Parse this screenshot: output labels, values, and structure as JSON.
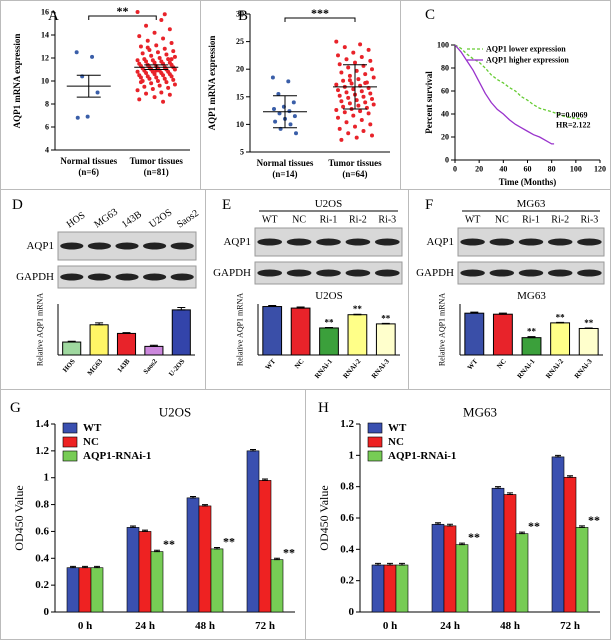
{
  "chart_data": [
    {
      "type": "dot",
      "panel": "A",
      "ylabel": "AQP1 mRNA expression",
      "ylim": [
        4,
        16
      ],
      "yticks": [
        4,
        6,
        8,
        10,
        12,
        14,
        16
      ],
      "significance": "**",
      "groups": [
        {
          "name": [
            "Normal tissues",
            "(n=6)"
          ],
          "color": "#3a5ea8",
          "mean": 9.55,
          "error": 0.95,
          "values": [
            12.5,
            12.1,
            10.4,
            9.0,
            6.9,
            6.8
          ]
        },
        {
          "name": [
            "Tumor tissues",
            "(n=81)"
          ],
          "color": "#e8232a",
          "mean": 11.2,
          "error": 0.2,
          "values": [
            16.0,
            15.3,
            14.8,
            14.5,
            14.2,
            13.9,
            13.7,
            13.5,
            13.3,
            13.1,
            13.0,
            12.8,
            12.7,
            12.6,
            12.5,
            12.4,
            12.3,
            12.2,
            12.1,
            12.0,
            11.9,
            11.9,
            11.8,
            11.8,
            11.7,
            11.7,
            11.6,
            11.6,
            11.5,
            11.5,
            11.4,
            11.4,
            11.3,
            11.3,
            11.2,
            11.2,
            11.2,
            11.1,
            11.1,
            11.0,
            11.0,
            11.0,
            10.9,
            10.9,
            10.8,
            10.8,
            10.8,
            10.7,
            10.7,
            10.6,
            10.6,
            10.5,
            10.5,
            10.4,
            10.4,
            10.3,
            10.3,
            10.2,
            10.2,
            10.1,
            10.0,
            10.0,
            9.9,
            9.8,
            9.7,
            9.6,
            9.5,
            9.4,
            9.3,
            9.2,
            9.0,
            8.9,
            8.8,
            8.6,
            8.4,
            8.2,
            12.9,
            11.9,
            10.9,
            9.9,
            15.8
          ]
        }
      ]
    },
    {
      "type": "dot",
      "panel": "B",
      "ylabel": "AQP1 mRNA expression",
      "ylim": [
        5,
        30
      ],
      "yticks": [
        5,
        10,
        15,
        20,
        25,
        30
      ],
      "significance": "***",
      "groups": [
        {
          "name": [
            "Normal tissues",
            "(n=14)"
          ],
          "color": "#3a5ea8",
          "mean": 12.3,
          "error": 2.9,
          "values": [
            18.5,
            17.8,
            15.5,
            14.0,
            13.2,
            12.8,
            12.4,
            12.0,
            11.5,
            11.0,
            10.5,
            10.0,
            9.2,
            8.4
          ]
        },
        {
          "name": [
            "Tumor tissues",
            "(n=64)"
          ],
          "color": "#e8232a",
          "mean": 16.8,
          "error": 4.0,
          "values": [
            25.0,
            24.5,
            24.0,
            23.5,
            23.0,
            22.5,
            22.2,
            21.8,
            21.5,
            21.2,
            20.9,
            20.6,
            20.3,
            20.0,
            19.7,
            19.4,
            19.1,
            18.8,
            18.5,
            18.2,
            17.9,
            17.6,
            17.4,
            17.2,
            17.0,
            16.8,
            16.6,
            16.4,
            16.2,
            16.0,
            15.8,
            15.6,
            15.4,
            15.2,
            15.0,
            14.8,
            14.6,
            14.4,
            14.2,
            14.0,
            13.8,
            13.6,
            13.4,
            13.2,
            13.0,
            12.8,
            12.6,
            12.4,
            12.2,
            12.0,
            11.6,
            11.2,
            10.8,
            10.4,
            10.0,
            9.6,
            9.2,
            8.8,
            8.4,
            8.0,
            7.6,
            7.2,
            17.5,
            18.0
          ]
        }
      ]
    },
    {
      "type": "survival",
      "panel": "C",
      "xlabel": "Time (Months)",
      "ylabel": "Percent survival",
      "xlim": [
        0,
        120
      ],
      "xticks": [
        0,
        20,
        40,
        60,
        80,
        100,
        120
      ],
      "ylim": [
        0,
        100
      ],
      "yticks": [
        0,
        20,
        40,
        60,
        80,
        100
      ],
      "annotations": [
        "P=0.0069",
        "HR=2.122"
      ],
      "series": [
        {
          "name": "AQP1 lower expression",
          "color": "#66cc33",
          "line_style": "dashed",
          "x": [
            0,
            5,
            10,
            15,
            20,
            25,
            30,
            35,
            40,
            45,
            50,
            55,
            60,
            65,
            70,
            80,
            90,
            100,
            105
          ],
          "y": [
            100,
            97,
            92,
            88,
            85,
            80,
            74,
            70,
            67,
            63,
            60,
            55,
            52,
            48,
            45,
            42,
            38,
            36,
            36
          ]
        },
        {
          "name": "AQP1 higher expression",
          "color": "#9933cc",
          "line_style": "solid",
          "x": [
            0,
            5,
            10,
            15,
            20,
            25,
            30,
            35,
            40,
            45,
            50,
            55,
            60,
            65,
            70,
            75,
            80,
            82
          ],
          "y": [
            100,
            94,
            86,
            78,
            68,
            58,
            50,
            44,
            40,
            35,
            31,
            28,
            25,
            22,
            20,
            17,
            14,
            14
          ]
        }
      ]
    },
    {
      "type": "bar",
      "panel": "D",
      "ylabel": "Relative AQP1 mRNA",
      "ylim": [
        0,
        1.3
      ],
      "blot": {
        "lanes": [
          "HOS",
          "MG63",
          "143B",
          "U2OS",
          "Saos2"
        ],
        "rows": [
          "AQP1",
          "GAPDH"
        ]
      },
      "categories": [
        "HOS",
        "MG63",
        "143B",
        "Saos2",
        "U-2OS"
      ],
      "values": [
        0.33,
        0.77,
        0.55,
        0.22,
        1.15
      ],
      "errors": [
        0.02,
        0.05,
        0.02,
        0.03,
        0.06
      ],
      "colors": [
        "#9fd89f",
        "#fff566",
        "#e8232a",
        "#cc88dd",
        "#3344aa"
      ]
    },
    {
      "type": "bar",
      "panel": "E",
      "title": "U2OS",
      "ylabel": "Relative AQP1 mRNA",
      "ylim": [
        0,
        1.0
      ],
      "blot": {
        "title": "U2OS",
        "lanes": [
          "WT",
          "NC",
          "Ri-1",
          "Ri-2",
          "Ri-3"
        ],
        "rows": [
          "AQP1",
          "GAPDH"
        ]
      },
      "categories": [
        "WT",
        "NC",
        "RNAi-1",
        "RNAi-2",
        "RNAi-3"
      ],
      "values": [
        0.95,
        0.92,
        0.53,
        0.79,
        0.61
      ],
      "errors": [
        0.02,
        0.02,
        0.01,
        0.01,
        0.01
      ],
      "significance": [
        null,
        null,
        "**",
        "**",
        "**"
      ],
      "colors": [
        "#3a4fa8",
        "#e8232a",
        "#3ba03b",
        "#ffff88",
        "#ffffcc"
      ]
    },
    {
      "type": "bar",
      "panel": "F",
      "title": "MG63",
      "ylabel": "Relative AQP1 mRNA",
      "ylim": [
        0,
        1.0
      ],
      "blot": {
        "title": "MG63",
        "lanes": [
          "WT",
          "NC",
          "Ri-1",
          "Ri-2",
          "Ri-3"
        ],
        "rows": [
          "AQP1",
          "GAPDH"
        ]
      },
      "categories": [
        "WT",
        "NC",
        "RNAi-1",
        "RNAi-2",
        "RNAi-3"
      ],
      "values": [
        0.82,
        0.8,
        0.34,
        0.63,
        0.52
      ],
      "errors": [
        0.02,
        0.02,
        0.02,
        0.01,
        0.01
      ],
      "significance": [
        null,
        null,
        "**",
        "**",
        "**"
      ],
      "colors": [
        "#3a4fa8",
        "#e8232a",
        "#3ba03b",
        "#ffff88",
        "#ffffcc"
      ]
    },
    {
      "type": "grouped",
      "panel": "G",
      "title": "U2OS",
      "ylabel": "OD450 Value",
      "ylim": [
        0,
        1.4
      ],
      "yticks": [
        0,
        0.2,
        0.4,
        0.6,
        0.8,
        1,
        1.2,
        1.4
      ],
      "legend": "upper left",
      "categories": [
        "0 h",
        "24 h",
        "48 h",
        "72 h"
      ],
      "series": [
        {
          "name": "WT",
          "color": "#3a50b0",
          "values": [
            0.33,
            0.63,
            0.85,
            1.2
          ],
          "errors": [
            0.01,
            0.01,
            0.01,
            0.01
          ]
        },
        {
          "name": "NC",
          "color": "#ee2222",
          "values": [
            0.33,
            0.6,
            0.79,
            0.98
          ],
          "errors": [
            0.01,
            0.01,
            0.01,
            0.01
          ]
        },
        {
          "name": "AQP1-RNAi-1",
          "color": "#77cc55",
          "values": [
            0.33,
            0.45,
            0.47,
            0.39
          ],
          "errors": [
            0.01,
            0.01,
            0.01,
            0.01
          ],
          "significance": [
            null,
            "**",
            "**",
            "**"
          ]
        }
      ]
    },
    {
      "type": "grouped",
      "panel": "H",
      "title": "MG63",
      "ylabel": "OD450 Value",
      "ylim": [
        0,
        1.2
      ],
      "yticks": [
        0,
        0.2,
        0.4,
        0.6,
        0.8,
        1,
        1.2
      ],
      "legend": "upper left",
      "categories": [
        "0 h",
        "24 h",
        "48 h",
        "72 h"
      ],
      "series": [
        {
          "name": "WT",
          "color": "#3a50b0",
          "values": [
            0.3,
            0.56,
            0.79,
            0.99
          ],
          "errors": [
            0.01,
            0.01,
            0.01,
            0.01
          ]
        },
        {
          "name": "NC",
          "color": "#ee2222",
          "values": [
            0.3,
            0.55,
            0.75,
            0.86
          ],
          "errors": [
            0.01,
            0.01,
            0.01,
            0.01
          ]
        },
        {
          "name": "AQP1-RNAi-1",
          "color": "#77cc55",
          "values": [
            0.3,
            0.43,
            0.5,
            0.54
          ],
          "errors": [
            0.01,
            0.01,
            0.01,
            0.01
          ],
          "significance": [
            null,
            "**",
            "**",
            "**"
          ]
        }
      ]
    }
  ]
}
